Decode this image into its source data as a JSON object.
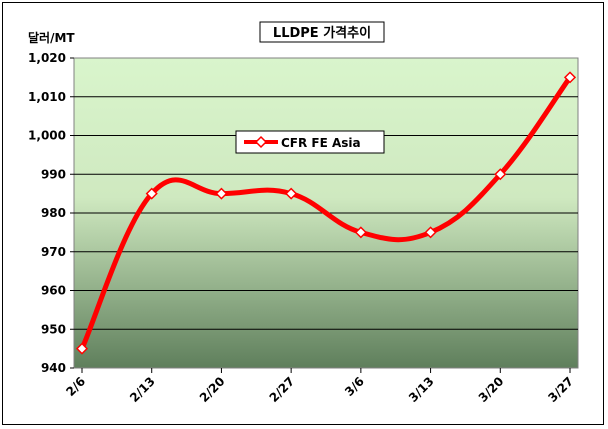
{
  "chart_data": {
    "type": "line",
    "title": "LLDPE 가격추이",
    "ylabel": "달러/MT",
    "xlabel": "",
    "categories": [
      "2/6",
      "2/13",
      "2/20",
      "2/27",
      "3/6",
      "3/13",
      "3/20",
      "3/27"
    ],
    "series": [
      {
        "name": "CFR FE Asia",
        "values": [
          945,
          985,
          985,
          985,
          975,
          975,
          990,
          1015
        ],
        "color": "#ff0000"
      }
    ],
    "ylim": [
      940,
      1020
    ],
    "yticks": [
      "940",
      "950",
      "960",
      "970",
      "980",
      "990",
      "1,000",
      "1,010",
      "1,020"
    ],
    "grid": true,
    "legend": "upper-left",
    "background": "gradient green"
  }
}
